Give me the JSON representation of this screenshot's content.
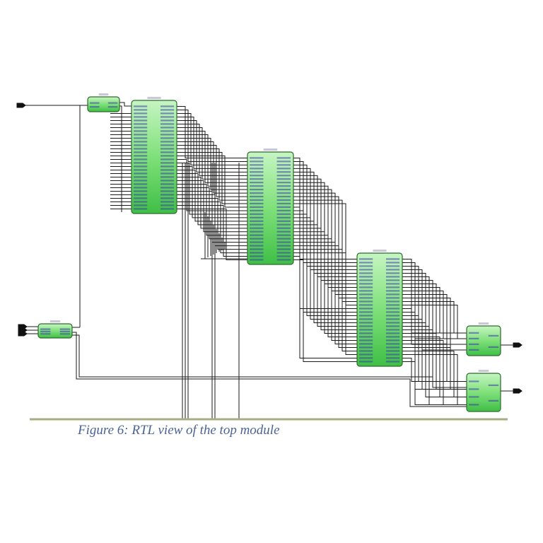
{
  "figure": {
    "caption": "Figure 6: RTL view of the top module"
  },
  "blocks": [
    {
      "id": "b-clockgen",
      "kind": "module-box"
    },
    {
      "id": "b-ctrl",
      "kind": "module-box"
    },
    {
      "id": "b-stage1",
      "kind": "module-box"
    },
    {
      "id": "b-stage2",
      "kind": "module-box"
    },
    {
      "id": "b-stage3",
      "kind": "module-box"
    },
    {
      "id": "b-out1",
      "kind": "module-box"
    },
    {
      "id": "b-out2",
      "kind": "module-box"
    }
  ],
  "colors": {
    "block_fill_top": "#b8f2b4",
    "block_fill_bottom": "#3fc447",
    "block_stroke": "#2c6a2c",
    "wire": "#1a1a1a",
    "baseline": "#a9ad84",
    "caption": "#4a6496",
    "port_text": "#3b3bb0"
  }
}
